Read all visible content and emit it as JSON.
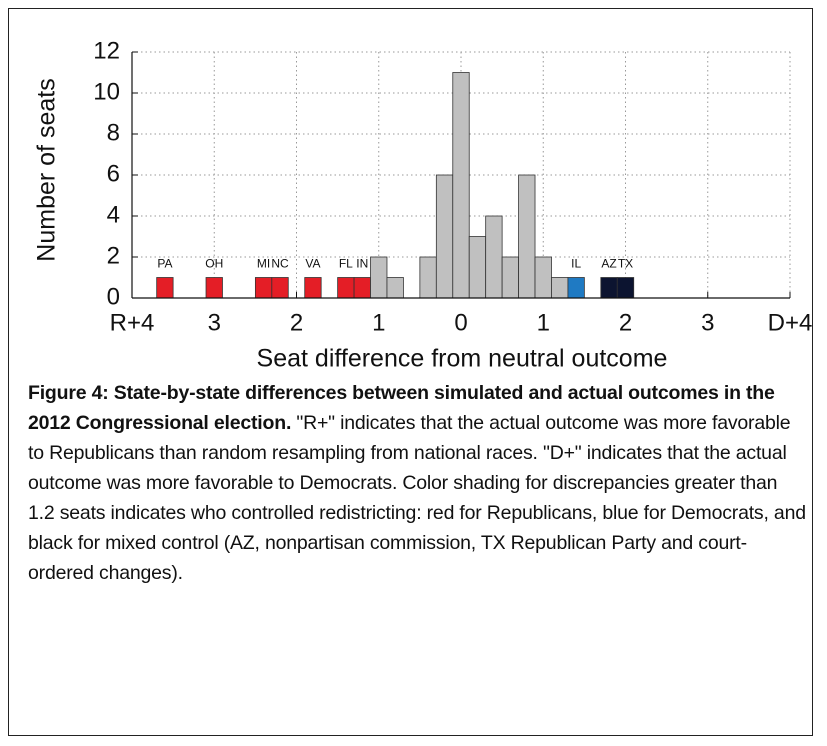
{
  "chart_data": {
    "type": "histogram",
    "xlabel": "Seat difference from neutral outcome",
    "ylabel": "Number of seats",
    "bins": [
      -3.7,
      -3.5,
      -3.3,
      -3.1,
      -2.9,
      -2.7,
      -2.5,
      -2.3,
      -2.1,
      -1.9,
      -1.7,
      -1.5,
      -1.3,
      -1.1,
      -0.9,
      -0.7,
      -0.5,
      -0.3,
      -0.1,
      0.1,
      0.3,
      0.5,
      0.7,
      0.9,
      1.1,
      1.3,
      1.5,
      1.7,
      1.9,
      2.1
    ],
    "counts": [
      1,
      0,
      0,
      1,
      0,
      0,
      1,
      1,
      0,
      1,
      0,
      1,
      1,
      2,
      1,
      0,
      2,
      6,
      11,
      3,
      4,
      2,
      6,
      2,
      1,
      1,
      0,
      1,
      1
    ],
    "colors": [
      "#e41e26",
      "#c0c0c0",
      "#c0c0c0",
      "#e41e26",
      "#c0c0c0",
      "#c0c0c0",
      "#e41e26",
      "#e41e26",
      "#c0c0c0",
      "#e41e26",
      "#c0c0c0",
      "#e41e26",
      "#e41e26",
      "#c0c0c0",
      "#c0c0c0",
      "#c0c0c0",
      "#c0c0c0",
      "#c0c0c0",
      "#c0c0c0",
      "#c0c0c0",
      "#c0c0c0",
      "#c0c0c0",
      "#c0c0c0",
      "#c0c0c0",
      "#c0c0c0",
      "#1f7ac3",
      "#c0c0c0",
      "#0c1430",
      "#0c1430"
    ],
    "bar_labels": [
      "PA",
      null,
      null,
      "OH",
      null,
      null,
      "MI",
      "NC",
      null,
      "VA",
      null,
      "FL",
      "IN",
      null,
      null,
      null,
      null,
      null,
      null,
      null,
      null,
      null,
      null,
      null,
      null,
      "IL",
      null,
      "AZ",
      "TX"
    ],
    "xlim": [
      -4,
      4
    ],
    "xticks": [
      {
        "value": -4,
        "label": "R+4"
      },
      {
        "value": -3,
        "label": "3"
      },
      {
        "value": -2,
        "label": "2"
      },
      {
        "value": -1,
        "label": "1"
      },
      0,
      1,
      2,
      3,
      {
        "value": 4,
        "label": "D+4"
      }
    ],
    "ylim": [
      0,
      12
    ],
    "yticks": [
      0,
      2,
      4,
      6,
      8,
      10,
      12
    ],
    "grid": true
  },
  "caption": {
    "bold": "Figure 4: State-by-state differences between simulated and actual outcomes in the 2012 Congressional election.",
    "text": " \"R+\" indicates that the actual outcome was more favorable to Republicans than random resampling from national races. \"D+\" indicates that the actual outcome was more favorable to Democrats. Color shading for discrepancies greater than 1.2 seats indicates who controlled redistricting: red for Republicans, blue for Democrats, and black for mixed control (AZ, nonpartisan commission, TX Republican Party and court-ordered changes)."
  }
}
